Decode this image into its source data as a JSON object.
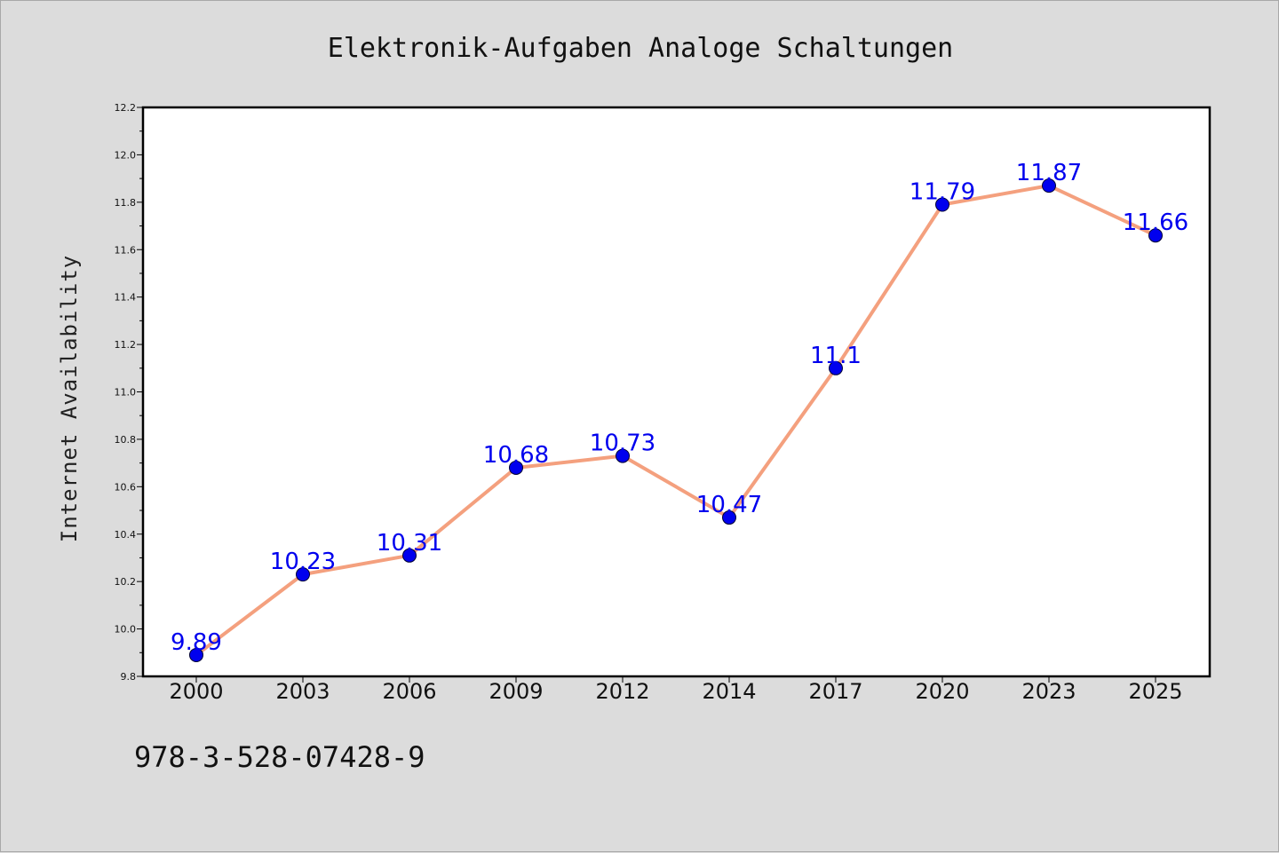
{
  "chart_data": {
    "type": "line",
    "title": "Elektronik-Aufgaben Analoge Schaltungen",
    "xlabel": "",
    "ylabel": "Internet Availability",
    "categories": [
      "2000",
      "2003",
      "2006",
      "2009",
      "2012",
      "2014",
      "2017",
      "2020",
      "2023",
      "2025"
    ],
    "values": [
      9.89,
      10.23,
      10.31,
      10.68,
      10.73,
      10.47,
      11.1,
      11.79,
      11.87,
      11.66
    ],
    "data_labels": [
      "9.89",
      "10.23",
      "10.31",
      "10.68",
      "10.73",
      "10.47",
      "11.1",
      "11.79",
      "11.87",
      "11.66"
    ],
    "ylim": [
      9.8,
      12.2
    ],
    "yticks": [
      "9.8",
      "10.0",
      "10.2",
      "10.4",
      "10.6",
      "10.8",
      "11.0",
      "11.2",
      "11.4",
      "11.6",
      "11.8",
      "12.0",
      "12.2"
    ],
    "line_color": "#f4a07e",
    "marker_color": "#0000ee",
    "label_color": "#0000ee",
    "grid": false,
    "legend": "none"
  },
  "footer": {
    "isbn": "978-3-528-07428-9"
  }
}
